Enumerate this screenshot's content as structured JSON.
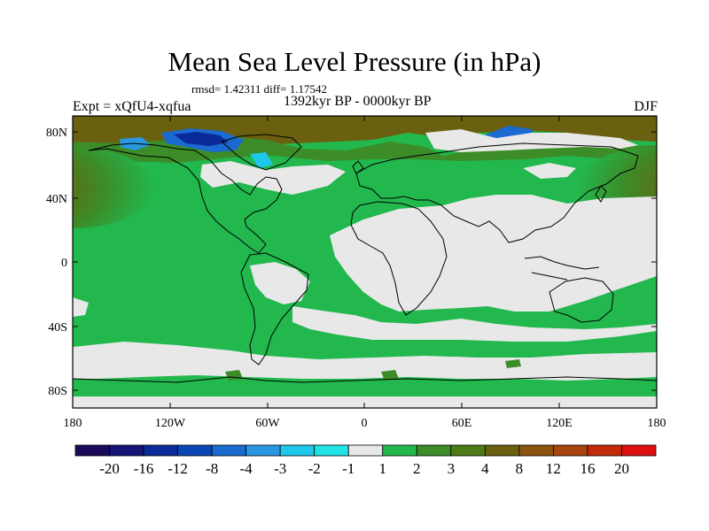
{
  "title": "Mean Sea Level Pressure (in hPa)",
  "stats_text": "rmsd= 1.42311 diff= 1.17542",
  "experiment": "Expt = xQfU4-xqfua",
  "period": "1392kyr BP - 0000kyr BP",
  "season": "DJF",
  "lat_ticks": [
    "80N",
    "40N",
    "0",
    "40S",
    "80S"
  ],
  "lon_ticks": [
    "180",
    "120W",
    "60W",
    "0",
    "60E",
    "120E",
    "180"
  ],
  "legend_labels": [
    "-20",
    "-16",
    "-12",
    "-8",
    "-4",
    "-3",
    "-2",
    "-1",
    "1",
    "2",
    "3",
    "4",
    "8",
    "12",
    "16",
    "20"
  ],
  "palette": {
    "neg_20_plus": "#1a0a5a",
    "neg_16": "#131475",
    "neg_12": "#0a2a9a",
    "neg_8": "#0a46b4",
    "neg_4": "#1a6ad0",
    "neg_3": "#2a98e0",
    "neg_2": "#1ec8ea",
    "neg_1": "#20e4e4",
    "neutral": "#e8e8e8",
    "pos_1": "#22b84e",
    "pos_2": "#3c8c28",
    "pos_3": "#4e7a18",
    "pos_4": "#6a6010",
    "pos_8": "#8a5410",
    "pos_12": "#a8440e",
    "pos_16": "#c22a0a",
    "pos_20_plus": "#dd1010"
  }
}
